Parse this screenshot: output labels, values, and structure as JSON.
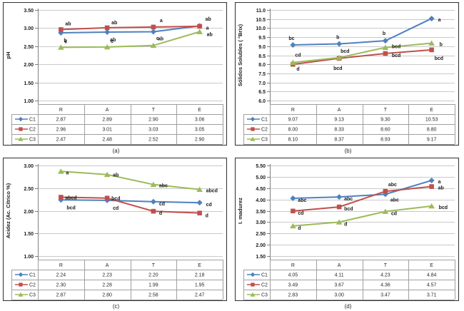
{
  "colors": {
    "c1": "#4F81BD",
    "c2": "#C0504D",
    "c3": "#9BBB59",
    "grid": "#C9C9C9",
    "axis": "#808080",
    "frame": "#2F2F2F",
    "table_border": "#A0A0A0",
    "text": "#262626",
    "label_text": "#1A1A1A",
    "background": "#FFFFFF"
  },
  "chart_data": [
    {
      "id": "a",
      "caption": "(a)",
      "type": "line",
      "title": "",
      "ylabel": "pH",
      "xlabel": "",
      "ylim": [
        1.0,
        3.5
      ],
      "ystep": 0.5,
      "ydecimals": 2,
      "grid": true,
      "legend_position": "table-left",
      "categories": [
        "R",
        "A",
        "T",
        "E"
      ],
      "series": [
        {
          "name": "C1",
          "marker": "diamond",
          "color_key": "c1",
          "values": [
            2.87,
            2.89,
            2.9,
            3.06
          ],
          "labels": [
            {
              "t": "b",
              "dx": 4,
              "dy": 13
            },
            {
              "t": "ab",
              "dx": 4,
              "dy": 13
            },
            {
              "t": "ab",
              "dx": 6,
              "dy": 12
            },
            {
              "t": "a",
              "dx": 9,
              "dy": 5
            }
          ]
        },
        {
          "name": "C2",
          "marker": "square",
          "color_key": "c2",
          "values": [
            2.96,
            3.01,
            3.03,
            3.05
          ],
          "labels": [
            {
              "t": "ab",
              "dx": 6,
              "dy": -6
            },
            {
              "t": "ab",
              "dx": 6,
              "dy": -5
            },
            {
              "t": "a",
              "dx": 9,
              "dy": -7
            },
            {
              "t": "ab",
              "dx": 8,
              "dy": -8
            }
          ]
        },
        {
          "name": "C3",
          "marker": "triangle",
          "color_key": "c3",
          "values": [
            2.47,
            2.48,
            2.52,
            2.9
          ],
          "labels": [
            {
              "t": "c",
              "dx": 5,
              "dy": -6
            },
            {
              "t": "c",
              "dx": 5,
              "dy": -6
            },
            {
              "t": "c",
              "dx": 4,
              "dy": -8
            },
            {
              "t": "ab",
              "dx": 10,
              "dy": 6
            }
          ]
        }
      ]
    },
    {
      "id": "b",
      "caption": "(b)",
      "type": "line",
      "title": "",
      "ylabel": "Sólidos Solubles ( °Brix)",
      "xlabel": "",
      "ylim": [
        6.0,
        11.0
      ],
      "ystep": 0.5,
      "ydecimals": 1,
      "grid": true,
      "legend_position": "table-left",
      "categories": [
        "R",
        "A",
        "T",
        "E"
      ],
      "series": [
        {
          "name": "C1",
          "marker": "diamond",
          "color_key": "c1",
          "values": [
            9.07,
            9.13,
            9.3,
            10.53
          ],
          "labels": [
            {
              "t": "bc",
              "dx": -6,
              "dy": -7
            },
            {
              "t": "b",
              "dx": -4,
              "dy": -7
            },
            {
              "t": "b",
              "dx": -4,
              "dy": -8
            },
            {
              "t": "a",
              "dx": 9,
              "dy": 4
            }
          ]
        },
        {
          "name": "C2",
          "marker": "square",
          "color_key": "c2",
          "values": [
            8.0,
            8.33,
            8.6,
            8.8
          ],
          "labels": [
            {
              "t": "d",
              "dx": 5,
              "dy": 9
            },
            {
              "t": "bcd",
              "dx": -8,
              "dy": 16
            },
            {
              "t": "bcd",
              "dx": 9,
              "dy": 5
            },
            {
              "t": "bcd",
              "dx": 4,
              "dy": 14
            }
          ]
        },
        {
          "name": "C3",
          "marker": "triangle",
          "color_key": "c3",
          "values": [
            8.1,
            8.37,
            8.93,
            9.17
          ],
          "labels": [
            {
              "t": "cd",
              "dx": 3,
              "dy": -8
            },
            {
              "t": "bcd",
              "dx": 2,
              "dy": -7
            },
            {
              "t": "bcd",
              "dx": 9,
              "dy": 1
            },
            {
              "t": "b",
              "dx": 11,
              "dy": 4
            }
          ]
        }
      ]
    },
    {
      "id": "c",
      "caption": "(c)",
      "type": "line",
      "title": "",
      "ylabel": "Acidez (Ac. Cítrico %)",
      "xlabel": "",
      "ylim": [
        1.0,
        3.0
      ],
      "ystep": 0.5,
      "ydecimals": 2,
      "grid": true,
      "legend_position": "table-left",
      "categories": [
        "R",
        "A",
        "T",
        "E"
      ],
      "series": [
        {
          "name": "C1",
          "marker": "diamond",
          "color_key": "c1",
          "values": [
            2.24,
            2.23,
            2.2,
            2.18
          ],
          "labels": [
            {
              "t": "bcd",
              "dx": 8,
              "dy": 13
            },
            {
              "t": "cd",
              "dx": 8,
              "dy": 13
            },
            {
              "t": "cd",
              "dx": 8,
              "dy": 5
            },
            {
              "t": "cd",
              "dx": 9,
              "dy": 5
            }
          ]
        },
        {
          "name": "C2",
          "marker": "square",
          "color_key": "c2",
          "values": [
            2.3,
            2.28,
            1.99,
            1.95
          ],
          "labels": [
            {
              "t": "abcd",
              "dx": 6,
              "dy": 3
            },
            {
              "t": "bcd",
              "dx": 6,
              "dy": 3
            },
            {
              "t": "d",
              "dx": 8,
              "dy": 5
            },
            {
              "t": "d",
              "dx": 8,
              "dy": 6
            }
          ]
        },
        {
          "name": "C3",
          "marker": "triangle",
          "color_key": "c3",
          "values": [
            2.87,
            2.8,
            2.58,
            2.47
          ],
          "labels": [
            {
              "t": "a",
              "dx": 7,
              "dy": 4
            },
            {
              "t": "ab",
              "dx": 8,
              "dy": 3
            },
            {
              "t": "abc",
              "dx": 8,
              "dy": 4
            },
            {
              "t": "abcd",
              "dx": 9,
              "dy": 4
            }
          ]
        }
      ]
    },
    {
      "id": "d",
      "caption": "(d)",
      "type": "line",
      "title": "",
      "ylabel": "I. madurez",
      "xlabel": "",
      "ylim": [
        1.5,
        5.5
      ],
      "ystep": 0.5,
      "ydecimals": 2,
      "grid": true,
      "legend_position": "table-left",
      "categories": [
        "R",
        "A",
        "T",
        "E"
      ],
      "series": [
        {
          "name": "C1",
          "marker": "diamond",
          "color_key": "c1",
          "values": [
            4.05,
            4.11,
            4.23,
            4.84
          ],
          "labels": [
            {
              "t": "abc",
              "dx": 7,
              "dy": 5
            },
            {
              "t": "abc",
              "dx": 7,
              "dy": 5
            },
            {
              "t": "abc",
              "dx": 7,
              "dy": 10
            },
            {
              "t": "a",
              "dx": 9,
              "dy": 4
            }
          ]
        },
        {
          "name": "C2",
          "marker": "square",
          "color_key": "c2",
          "values": [
            3.49,
            3.67,
            4.36,
            4.57
          ],
          "labels": [
            {
              "t": "cd",
              "dx": 7,
              "dy": 5
            },
            {
              "t": "bcd",
              "dx": 7,
              "dy": 5
            },
            {
              "t": "abc",
              "dx": 4,
              "dy": -7
            },
            {
              "t": "ab",
              "dx": 9,
              "dy": 4
            }
          ]
        },
        {
          "name": "C3",
          "marker": "triangle",
          "color_key": "c3",
          "values": [
            2.83,
            3.0,
            3.47,
            3.71
          ],
          "labels": [
            {
              "t": "d",
              "dx": 7,
              "dy": 5
            },
            {
              "t": "d",
              "dx": 7,
              "dy": 5
            },
            {
              "t": "cd",
              "dx": 8,
              "dy": 5
            },
            {
              "t": "bcd",
              "dx": 10,
              "dy": 4
            }
          ]
        }
      ]
    }
  ]
}
